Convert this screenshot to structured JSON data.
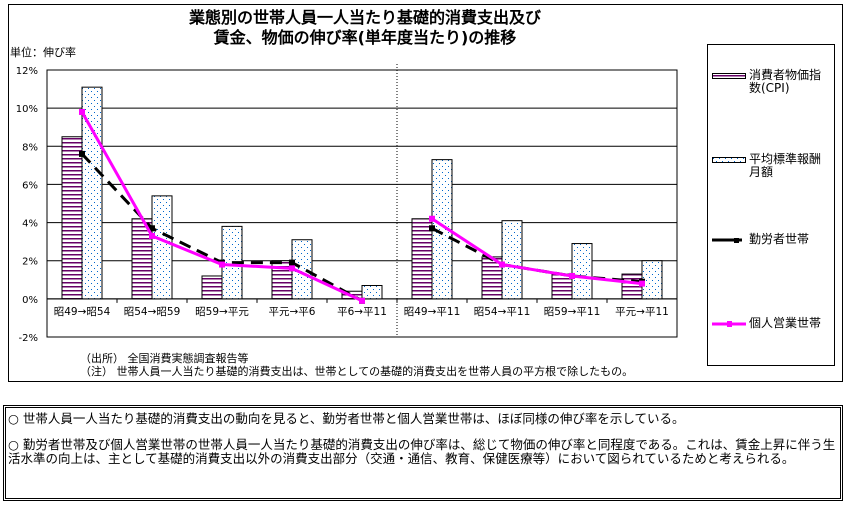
{
  "chart_data": {
    "type": "bar+line",
    "title": [
      "業態別の世帯人員一人当たり基礎的消費支出及び",
      "賃金、物価の伸び率(単年度当たり)の推移"
    ],
    "ylabel": "単位：伸び率",
    "categories": [
      "昭49→昭54",
      "昭54→昭59",
      "昭59→平元",
      "平元→平6",
      "平6→平11",
      "昭49→平11",
      "昭54→平11",
      "昭59→平11",
      "平元→平11"
    ],
    "ylim": [
      -2,
      12
    ],
    "yticks": [
      "-2%",
      "0%",
      "2%",
      "4%",
      "6%",
      "8%",
      "10%",
      "12%"
    ],
    "grid": true,
    "legend": "right",
    "series": [
      {
        "name": "消費者物価指数(CPI)",
        "kind": "bar",
        "color": "#660066",
        "values": [
          8.5,
          4.2,
          1.2,
          2.0,
          0.4,
          4.2,
          2.2,
          1.3,
          1.3
        ]
      },
      {
        "name": "平均標準報酬月額",
        "kind": "bar",
        "color": "#0066cc",
        "values": [
          11.1,
          5.4,
          3.8,
          3.1,
          0.7,
          7.3,
          4.1,
          2.9,
          2.0
        ]
      },
      {
        "name": "勤労者世帯",
        "kind": "line",
        "color": "#000000",
        "values": [
          7.6,
          3.7,
          1.9,
          1.9,
          -0.1,
          3.7,
          1.8,
          1.2,
          0.9
        ]
      },
      {
        "name": "個人営業世帯",
        "kind": "line",
        "color": "#ff00ff",
        "values": [
          9.8,
          3.3,
          1.8,
          1.6,
          -0.1,
          4.2,
          1.8,
          1.2,
          0.8
        ]
      }
    ]
  },
  "notes": {
    "source": "（出所）  全国消費実態調査報告等",
    "note": "（注）  世帯人員一人当たり基礎的消費支出は、世帯としての基礎的消費支出を世帯人員の平方根で除したもの。"
  },
  "text": {
    "p1": "○  世帯人員一人当たり基礎的消費支出の動向を見ると、勤労者世帯と個人営業世帯は、ほぼ同様の伸び率を示している。",
    "p2": "○  勤労者世帯及び個人営業世帯の世帯人員一人当たり基礎的消費支出の伸び率は、総じて物価の伸び率と同程度である。これは、賃金上昇に伴う生活水準の向上は、主として基礎的消費支出以外の消費支出部分（交通・通信、教育、保健医療等）において図られているためと考えられる。"
  }
}
